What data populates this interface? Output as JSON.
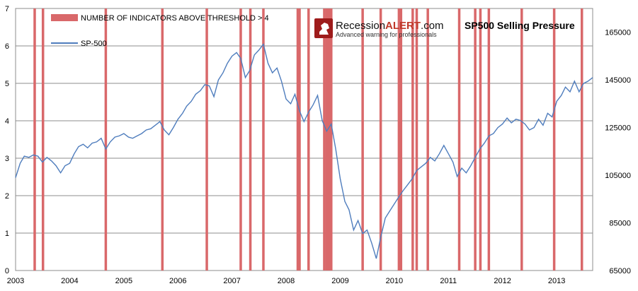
{
  "logo": {
    "brand_prefix": "Recession",
    "brand_highlight": "ALERT",
    "brand_suffix": ".com",
    "tagline": "Advanced warning for professionals"
  },
  "chart_data": {
    "type": "line",
    "title": "SP500 Selling Pressure",
    "xlim": [
      "2003-01-01",
      "2013-09-01"
    ],
    "x_ticks": [
      "2003",
      "2004",
      "2005",
      "2006",
      "2007",
      "2008",
      "2009",
      "2010",
      "2011",
      "2012",
      "2013"
    ],
    "y_left": {
      "ylim": [
        0,
        7
      ],
      "ticks": [
        "0",
        "1",
        "2",
        "3",
        "4",
        "5",
        "6",
        "7"
      ]
    },
    "y_right": {
      "ylim": [
        65000,
        175000
      ],
      "ticks": [
        "65000",
        "85000",
        "105000",
        "125000",
        "145000",
        "165000"
      ]
    },
    "grid": true,
    "legend_placement": "top-left",
    "colors": {
      "bars": "#d9686a",
      "line": "#4f7dbd",
      "grid": "#8c8c8c",
      "axis": "#7f7f7f"
    },
    "series": [
      {
        "name": "NUMBER OF INDICATORS ABOVE THRESHOLD > 4",
        "type": "bar",
        "axis": "left",
        "value": 7,
        "dates": [
          "2003-05-10",
          "2003-07-05",
          "2004-09-01",
          "2005-09-18",
          "2006-07-15",
          "2007-03-01",
          "2007-05-05",
          "2007-08-01",
          "2008-03-20",
          "2008-04-01",
          "2008-06-01",
          "2008-09-15",
          "2008-10-01",
          "2008-10-10",
          "2008-10-20",
          "2008-11-01",
          "2009-06-01",
          "2009-10-01",
          "2010-02-01",
          "2010-02-15",
          "2010-05-05",
          "2010-06-01",
          "2010-08-15",
          "2011-03-15",
          "2011-07-01",
          "2011-08-05",
          "2011-10-01",
          "2012-05-10",
          "2012-12-15",
          "2013-06-20"
        ]
      },
      {
        "name": "SP-500",
        "type": "line",
        "axis": "right",
        "points": [
          [
            "2003-01-01",
            104000
          ],
          [
            "2003-02-01",
            110000
          ],
          [
            "2003-03-01",
            113000
          ],
          [
            "2003-04-01",
            112500
          ],
          [
            "2003-05-01",
            113500
          ],
          [
            "2003-06-01",
            113000
          ],
          [
            "2003-07-01",
            110500
          ],
          [
            "2003-08-01",
            112500
          ],
          [
            "2003-09-01",
            111000
          ],
          [
            "2003-10-01",
            109000
          ],
          [
            "2003-11-01",
            106000
          ],
          [
            "2003-12-01",
            109000
          ],
          [
            "2004-01-01",
            110000
          ],
          [
            "2004-02-01",
            114000
          ],
          [
            "2004-03-01",
            117000
          ],
          [
            "2004-04-01",
            118000
          ],
          [
            "2004-05-01",
            116500
          ],
          [
            "2004-06-01",
            118500
          ],
          [
            "2004-07-01",
            119000
          ],
          [
            "2004-08-01",
            120500
          ],
          [
            "2004-09-01",
            116000
          ],
          [
            "2004-10-01",
            119000
          ],
          [
            "2004-11-01",
            121000
          ],
          [
            "2004-12-01",
            121500
          ],
          [
            "2005-01-01",
            122500
          ],
          [
            "2005-02-01",
            121000
          ],
          [
            "2005-03-01",
            120500
          ],
          [
            "2005-04-01",
            121500
          ],
          [
            "2005-05-01",
            122500
          ],
          [
            "2005-06-01",
            124000
          ],
          [
            "2005-07-01",
            124500
          ],
          [
            "2005-08-01",
            126000
          ],
          [
            "2005-09-01",
            127500
          ],
          [
            "2005-10-01",
            124000
          ],
          [
            "2005-11-01",
            122000
          ],
          [
            "2005-12-01",
            125000
          ],
          [
            "2006-01-01",
            128500
          ],
          [
            "2006-02-01",
            131000
          ],
          [
            "2006-03-01",
            134000
          ],
          [
            "2006-04-01",
            136000
          ],
          [
            "2006-05-01",
            139000
          ],
          [
            "2006-06-01",
            140500
          ],
          [
            "2006-07-01",
            143000
          ],
          [
            "2006-08-01",
            142500
          ],
          [
            "2006-09-01",
            138000
          ],
          [
            "2006-10-01",
            145000
          ],
          [
            "2006-11-01",
            148000
          ],
          [
            "2006-12-01",
            152000
          ],
          [
            "2007-01-01",
            155000
          ],
          [
            "2007-02-01",
            156500
          ],
          [
            "2007-03-01",
            154000
          ],
          [
            "2007-04-01",
            146000
          ],
          [
            "2007-05-01",
            149000
          ],
          [
            "2007-06-01",
            155500
          ],
          [
            "2007-07-01",
            157500
          ],
          [
            "2007-08-01",
            160000
          ],
          [
            "2007-09-01",
            152000
          ],
          [
            "2007-10-01",
            148000
          ],
          [
            "2007-11-01",
            150000
          ],
          [
            "2007-12-01",
            144500
          ],
          [
            "2008-01-01",
            137000
          ],
          [
            "2008-02-01",
            135000
          ],
          [
            "2008-03-01",
            139000
          ],
          [
            "2008-04-01",
            132000
          ],
          [
            "2008-05-01",
            127500
          ],
          [
            "2008-06-01",
            131500
          ],
          [
            "2008-07-01",
            134500
          ],
          [
            "2008-08-01",
            138500
          ],
          [
            "2008-09-01",
            128000
          ],
          [
            "2008-10-01",
            123500
          ],
          [
            "2008-11-01",
            126500
          ],
          [
            "2008-12-01",
            116000
          ],
          [
            "2009-01-01",
            103500
          ],
          [
            "2009-02-01",
            94000
          ],
          [
            "2009-03-01",
            90500
          ],
          [
            "2009-04-01",
            82000
          ],
          [
            "2009-05-01",
            86000
          ],
          [
            "2009-06-01",
            80500
          ],
          [
            "2009-07-01",
            82000
          ],
          [
            "2009-08-01",
            76500
          ],
          [
            "2009-09-01",
            70000
          ],
          [
            "2009-10-01",
            79000
          ],
          [
            "2009-11-01",
            87000
          ],
          [
            "2009-12-01",
            90000
          ],
          [
            "2010-01-01",
            93000
          ],
          [
            "2010-02-01",
            96000
          ],
          [
            "2010-03-01",
            98500
          ],
          [
            "2010-04-01",
            101000
          ],
          [
            "2010-05-01",
            103500
          ],
          [
            "2010-06-01",
            107000
          ],
          [
            "2010-07-01",
            108500
          ],
          [
            "2010-08-01",
            110000
          ],
          [
            "2010-09-01",
            112500
          ],
          [
            "2010-10-01",
            111000
          ],
          [
            "2010-11-01",
            114000
          ],
          [
            "2010-12-01",
            117500
          ],
          [
            "2011-01-01",
            114000
          ],
          [
            "2011-02-01",
            110500
          ],
          [
            "2011-03-01",
            104500
          ],
          [
            "2011-04-01",
            108000
          ],
          [
            "2011-05-01",
            106000
          ],
          [
            "2011-06-01",
            109000
          ],
          [
            "2011-07-01",
            112500
          ],
          [
            "2011-08-01",
            116000
          ],
          [
            "2011-09-01",
            118500
          ],
          [
            "2011-10-01",
            121500
          ],
          [
            "2011-11-01",
            122500
          ],
          [
            "2011-12-01",
            125000
          ],
          [
            "2012-01-01",
            126500
          ],
          [
            "2012-02-01",
            129000
          ],
          [
            "2012-03-01",
            127000
          ],
          [
            "2012-04-01",
            128500
          ],
          [
            "2012-05-01",
            128000
          ],
          [
            "2012-06-01",
            126500
          ],
          [
            "2012-07-01",
            124000
          ],
          [
            "2012-08-01",
            125000
          ],
          [
            "2012-09-01",
            128500
          ],
          [
            "2012-10-01",
            126000
          ],
          [
            "2012-11-01",
            131000
          ],
          [
            "2012-12-01",
            129500
          ],
          [
            "2013-01-01",
            136000
          ],
          [
            "2013-02-01",
            138500
          ],
          [
            "2013-03-01",
            142000
          ],
          [
            "2013-04-01",
            140000
          ],
          [
            "2013-05-01",
            144500
          ],
          [
            "2013-06-01",
            140000
          ],
          [
            "2013-07-01",
            143500
          ],
          [
            "2013-08-01",
            144500
          ],
          [
            "2013-09-01",
            146000
          ]
        ]
      }
    ]
  }
}
